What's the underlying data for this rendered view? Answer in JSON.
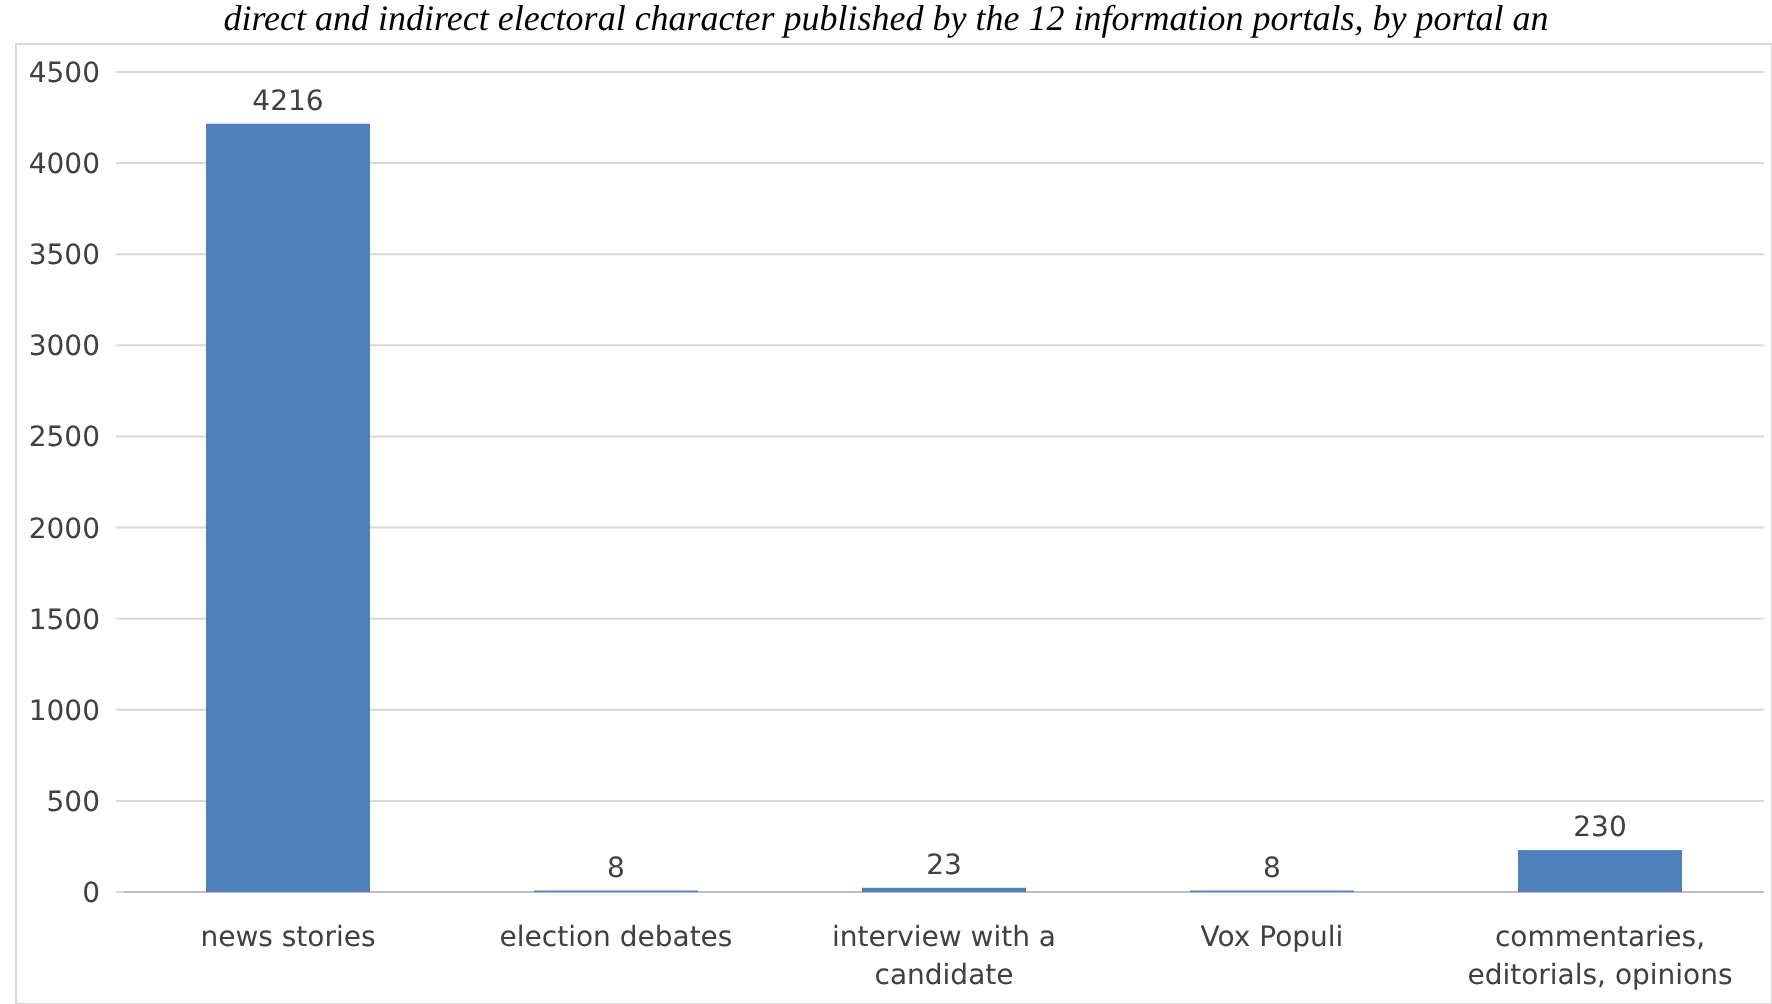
{
  "chart_data": {
    "type": "bar",
    "title": "direct and indirect electoral character published by the 12 information portals, by portal an",
    "categories": [
      "news stories",
      "election debates",
      "interview with a candidate",
      "Vox Populi",
      "commentaries, editorials, opinions"
    ],
    "values": [
      4216,
      8,
      23,
      8,
      230
    ],
    "color": "#4f81bd",
    "ylim": [
      0,
      4500
    ],
    "yticks": [
      0,
      500,
      1000,
      1500,
      2000,
      2500,
      3000,
      3500,
      4000,
      4500
    ],
    "grid": "y",
    "data_labels": true
  }
}
